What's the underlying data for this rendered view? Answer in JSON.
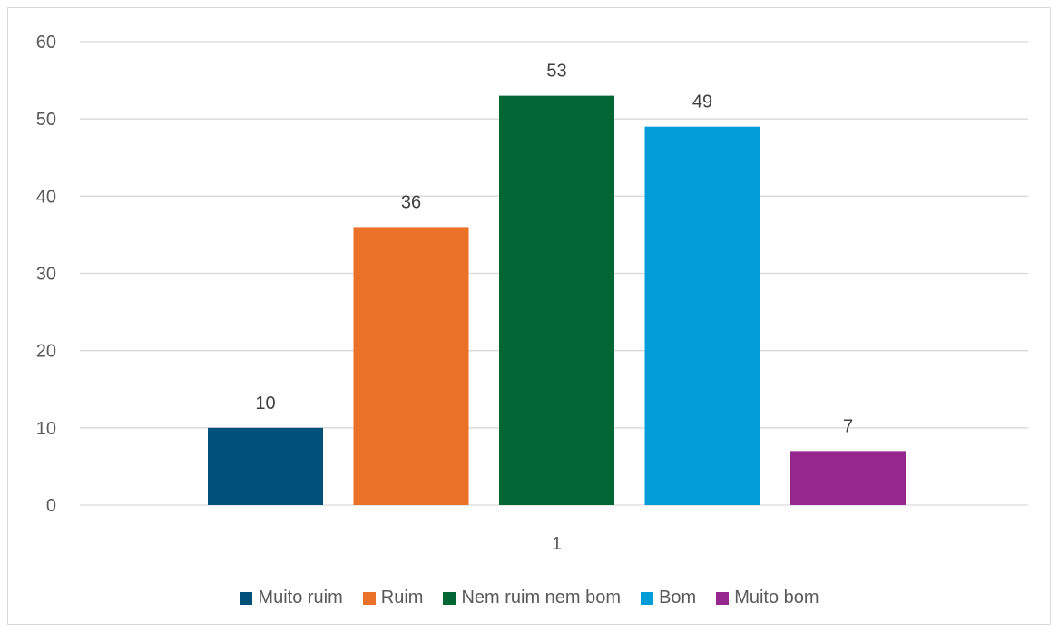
{
  "chart_data": {
    "type": "bar",
    "categories": [
      "1"
    ],
    "series": [
      {
        "name": "Muito ruim",
        "values": [
          10
        ],
        "color": "#005079"
      },
      {
        "name": "Ruim",
        "values": [
          36
        ],
        "color": "#E97228"
      },
      {
        "name": "Nem ruim nem bom",
        "values": [
          53
        ],
        "color": "#006634"
      },
      {
        "name": "Bom",
        "values": [
          49
        ],
        "color": "#009DD8"
      },
      {
        "name": "Muito bom",
        "values": [
          7
        ],
        "color": "#96278E"
      }
    ],
    "yticks": [
      "0",
      "10",
      "20",
      "30",
      "40",
      "50",
      "60"
    ],
    "ylim": [
      0,
      60
    ],
    "grid": true,
    "legend_position": "bottom",
    "data_labels": true
  }
}
